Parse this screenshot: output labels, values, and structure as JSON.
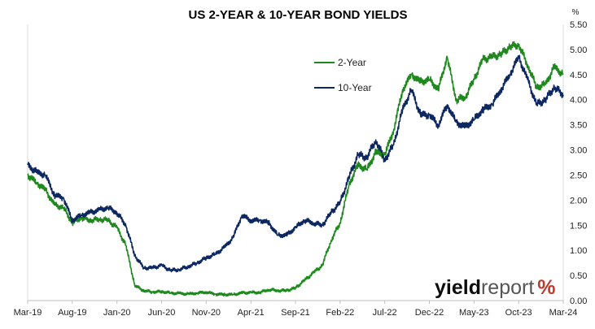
{
  "chart_data": {
    "type": "line",
    "title": "US 2-YEAR & 10-YEAR BOND YIELDS",
    "unit_label": "%",
    "xlabel": "",
    "ylabel": "",
    "ylim": [
      0.0,
      5.5
    ],
    "y_ticks": [
      "0.00",
      "0.50",
      "1.00",
      "1.50",
      "2.00",
      "2.50",
      "3.00",
      "3.50",
      "4.00",
      "4.50",
      "5.00",
      "5.50"
    ],
    "y_axis_side": "right",
    "x_ticks": [
      "Mar-19",
      "Aug-19",
      "Jan-20",
      "Jun-20",
      "Nov-20",
      "Apr-21",
      "Sep-21",
      "Feb-22",
      "Jul-22",
      "Dec-22",
      "May-23",
      "Oct-23",
      "Mar-24"
    ],
    "x_range": [
      "2019-03",
      "2024-03"
    ],
    "grid": false,
    "legend_position": "top-center",
    "series": [
      {
        "name": "2-Year",
        "color": "#1e8a1e",
        "x": [
          "2019-03",
          "2019-04",
          "2019-05",
          "2019-06",
          "2019-07",
          "2019-08",
          "2019-09",
          "2019-10",
          "2019-11",
          "2019-12",
          "2020-01",
          "2020-02",
          "2020-03",
          "2020-04",
          "2020-05",
          "2020-06",
          "2020-07",
          "2020-08",
          "2020-09",
          "2020-10",
          "2020-11",
          "2020-12",
          "2021-01",
          "2021-02",
          "2021-03",
          "2021-04",
          "2021-05",
          "2021-06",
          "2021-07",
          "2021-08",
          "2021-09",
          "2021-10",
          "2021-11",
          "2021-12",
          "2022-01",
          "2022-02",
          "2022-03",
          "2022-04",
          "2022-05",
          "2022-06",
          "2022-07",
          "2022-08",
          "2022-09",
          "2022-10",
          "2022-11",
          "2022-12",
          "2023-01",
          "2023-02",
          "2023-03",
          "2023-04",
          "2023-05",
          "2023-06",
          "2023-07",
          "2023-08",
          "2023-09",
          "2023-10",
          "2023-11",
          "2023-12",
          "2024-01",
          "2024-02",
          "2024-03"
        ],
        "values": [
          2.5,
          2.35,
          2.2,
          1.9,
          1.85,
          1.55,
          1.65,
          1.6,
          1.62,
          1.6,
          1.45,
          1.1,
          0.3,
          0.2,
          0.17,
          0.18,
          0.15,
          0.14,
          0.13,
          0.15,
          0.17,
          0.13,
          0.12,
          0.12,
          0.15,
          0.16,
          0.16,
          0.22,
          0.2,
          0.2,
          0.25,
          0.4,
          0.55,
          0.7,
          1.2,
          1.55,
          2.3,
          2.7,
          2.6,
          2.95,
          2.9,
          3.4,
          4.2,
          4.5,
          4.35,
          4.4,
          4.2,
          4.85,
          4.0,
          4.05,
          4.4,
          4.8,
          4.85,
          4.9,
          5.05,
          5.1,
          4.7,
          4.25,
          4.3,
          4.65,
          4.5
        ]
      },
      {
        "name": "10-Year",
        "color": "#0d2860",
        "x": [
          "2019-03",
          "2019-04",
          "2019-05",
          "2019-06",
          "2019-07",
          "2019-08",
          "2019-09",
          "2019-10",
          "2019-11",
          "2019-12",
          "2020-01",
          "2020-02",
          "2020-03",
          "2020-04",
          "2020-05",
          "2020-06",
          "2020-07",
          "2020-08",
          "2020-09",
          "2020-10",
          "2020-11",
          "2020-12",
          "2021-01",
          "2021-02",
          "2021-03",
          "2021-04",
          "2021-05",
          "2021-06",
          "2021-07",
          "2021-08",
          "2021-09",
          "2021-10",
          "2021-11",
          "2021-12",
          "2022-01",
          "2022-02",
          "2022-03",
          "2022-04",
          "2022-05",
          "2022-06",
          "2022-07",
          "2022-08",
          "2022-09",
          "2022-10",
          "2022-11",
          "2022-12",
          "2023-01",
          "2023-02",
          "2023-03",
          "2023-04",
          "2023-05",
          "2023-06",
          "2023-07",
          "2023-08",
          "2023-09",
          "2023-10",
          "2023-11",
          "2023-12",
          "2024-01",
          "2024-02",
          "2024-03"
        ],
        "values": [
          2.7,
          2.55,
          2.5,
          2.1,
          2.05,
          1.6,
          1.7,
          1.75,
          1.8,
          1.85,
          1.75,
          1.5,
          0.9,
          0.65,
          0.65,
          0.7,
          0.6,
          0.62,
          0.68,
          0.75,
          0.85,
          0.92,
          1.05,
          1.25,
          1.7,
          1.6,
          1.6,
          1.55,
          1.3,
          1.3,
          1.45,
          1.6,
          1.55,
          1.5,
          1.75,
          1.95,
          2.45,
          2.9,
          2.85,
          3.2,
          2.8,
          3.1,
          3.8,
          4.2,
          3.7,
          3.7,
          3.5,
          3.9,
          3.55,
          3.45,
          3.6,
          3.8,
          3.9,
          4.2,
          4.5,
          4.85,
          4.4,
          3.9,
          4.0,
          4.25,
          4.1
        ]
      }
    ]
  },
  "branding": {
    "logo_text_dark": "yield",
    "logo_text_light": "report",
    "logo_symbol": "%"
  }
}
